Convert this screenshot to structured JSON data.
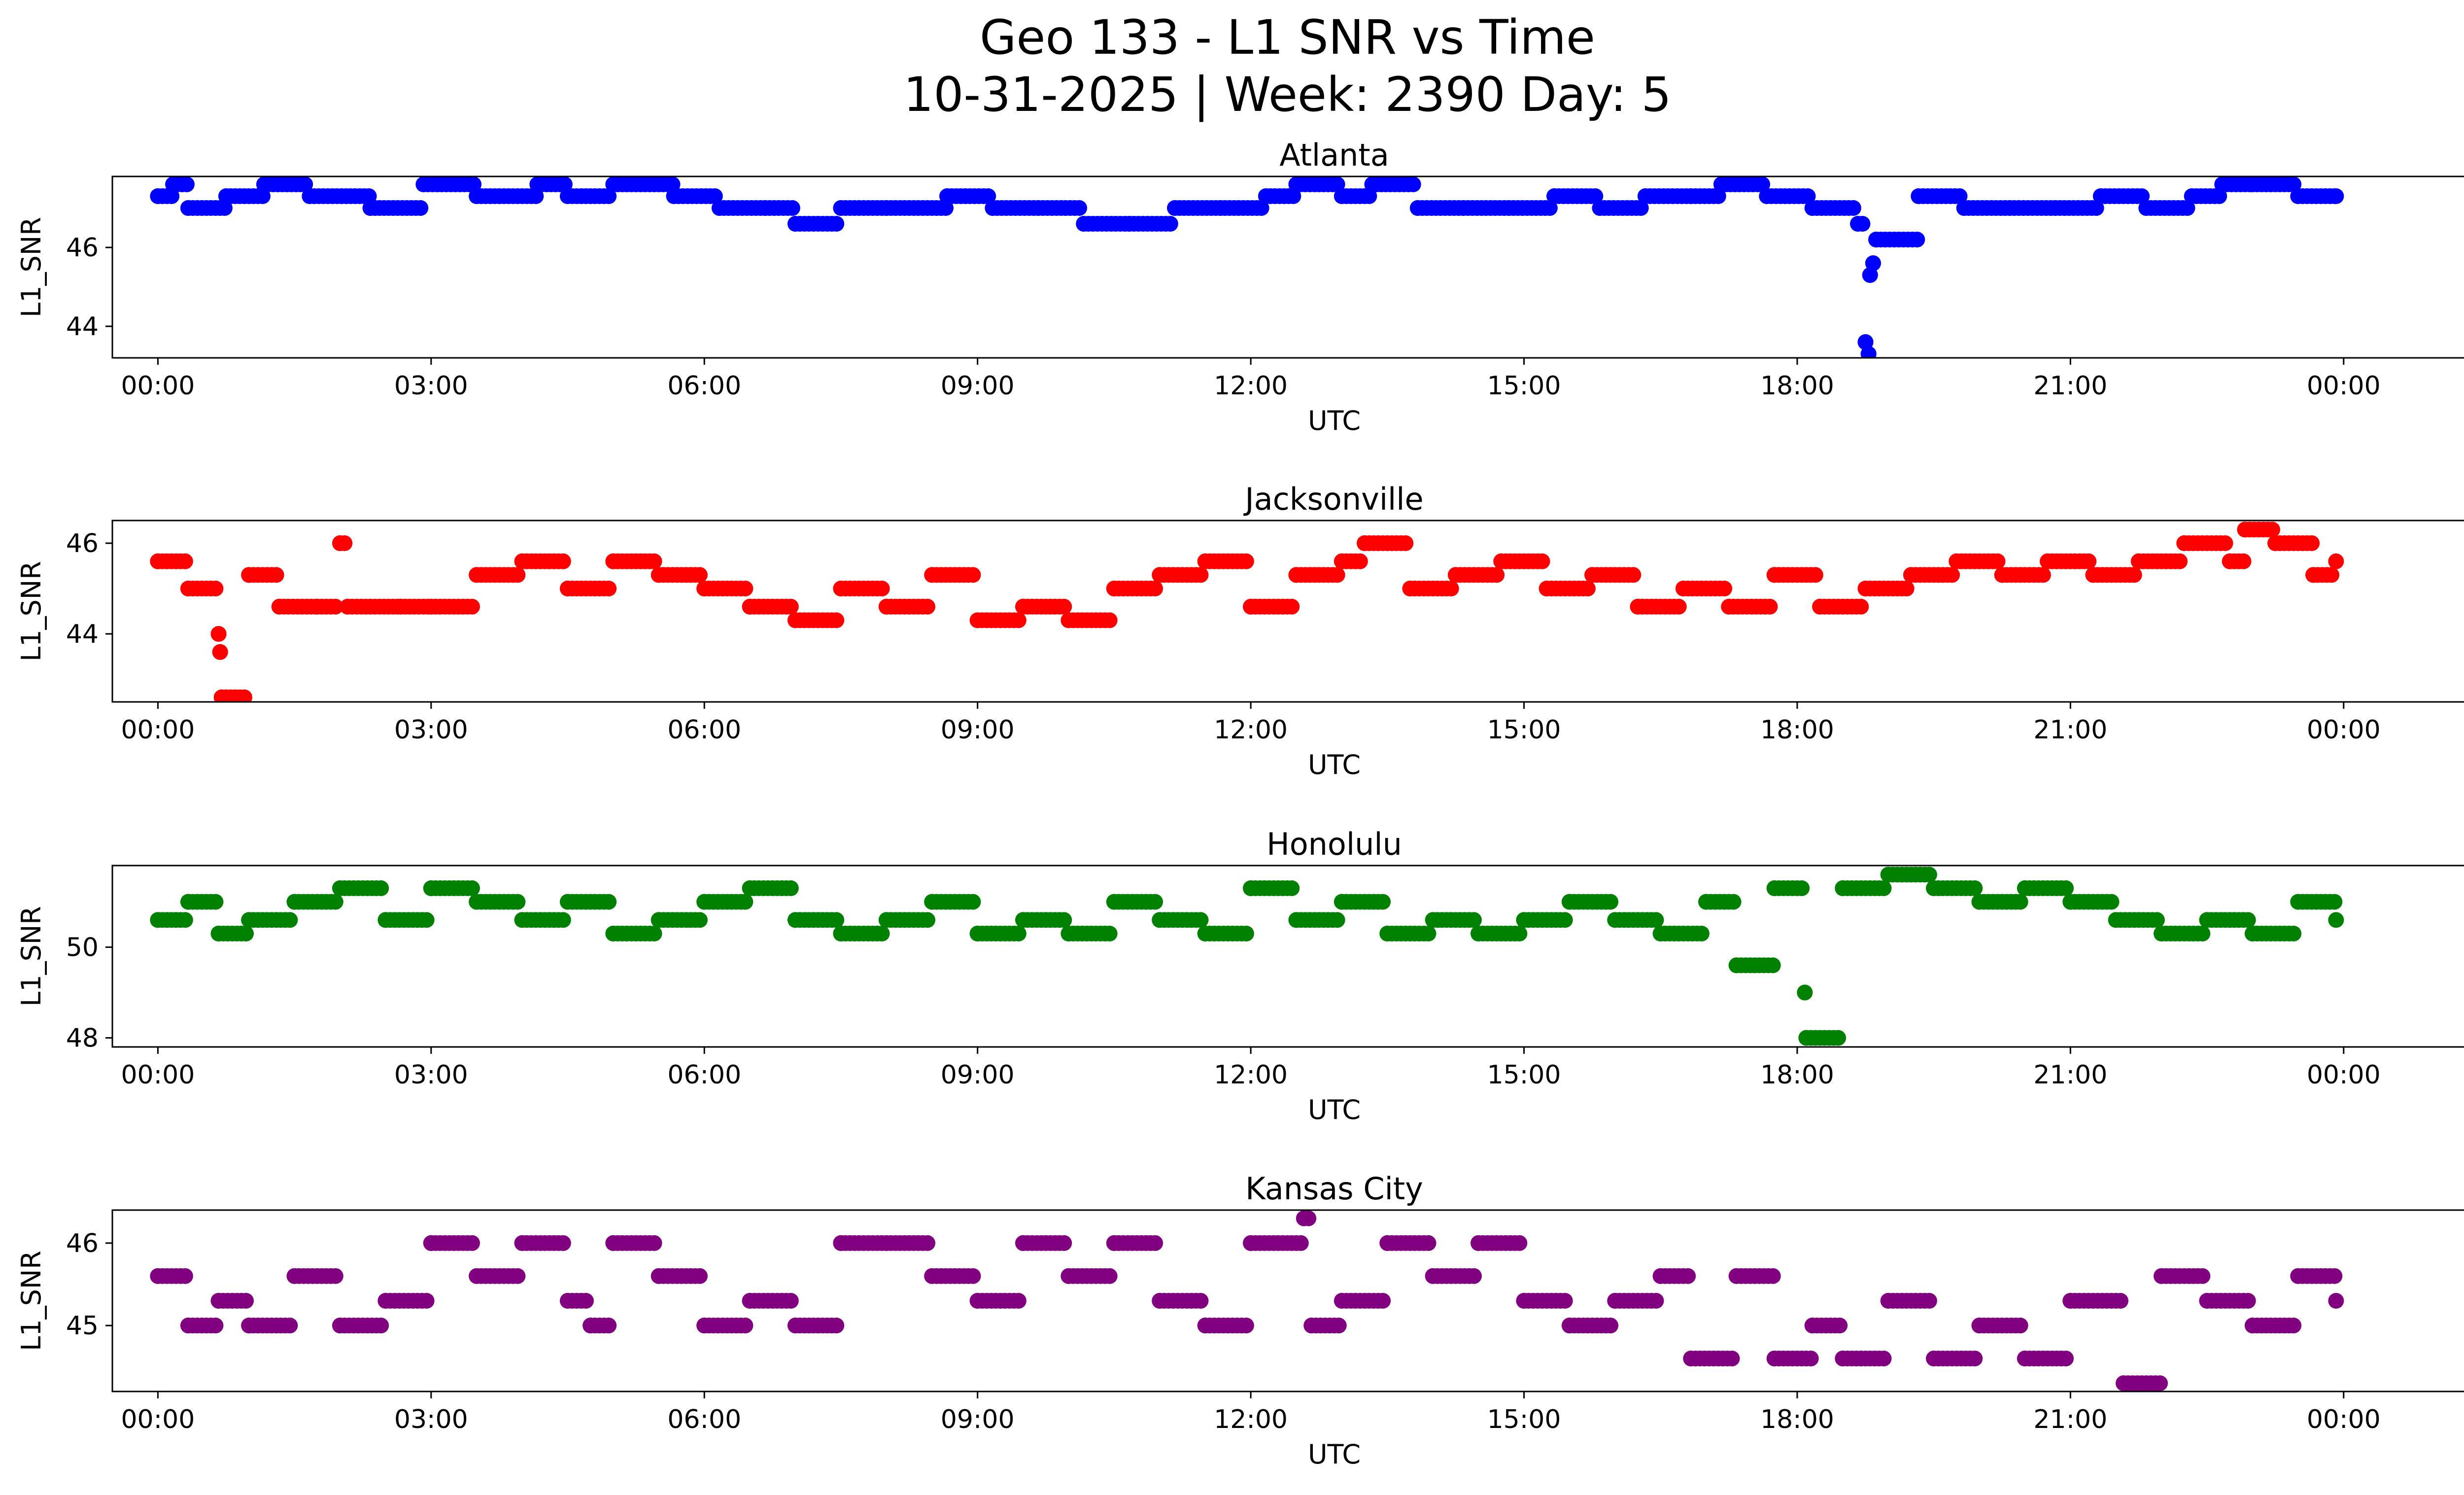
{
  "figure": {
    "title_line1": "Geo 133 - L1 SNR vs Time",
    "title_line2": "10-31-2025 | Week: 2390 Day: 5"
  },
  "chart_data": [
    {
      "type": "scatter",
      "title": "Atlanta",
      "xlabel": "UTC",
      "ylabel": "L1_SNR",
      "color": "#0000ff",
      "xlim": [
        "-0:30",
        "26:20"
      ],
      "ylim": [
        43.2,
        47.8
      ],
      "yticks": [
        44,
        46
      ],
      "xticks": [
        "00:00",
        "03:00",
        "06:00",
        "09:00",
        "12:00",
        "15:00",
        "18:00",
        "21:00",
        "00:00"
      ],
      "grid": false,
      "points": [
        [
          "00:00",
          47.3
        ],
        [
          "00:10",
          47.6
        ],
        [
          "00:20",
          47.0
        ],
        [
          "00:45",
          47.3
        ],
        [
          "01:10",
          47.6
        ],
        [
          "01:40",
          47.3
        ],
        [
          "02:20",
          47.0
        ],
        [
          "02:55",
          47.6
        ],
        [
          "03:30",
          47.3
        ],
        [
          "04:10",
          47.6
        ],
        [
          "04:30",
          47.3
        ],
        [
          "05:00",
          47.6
        ],
        [
          "05:40",
          47.3
        ],
        [
          "06:10",
          47.0
        ],
        [
          "06:40",
          47.0
        ],
        [
          "07:00",
          46.6
        ],
        [
          "07:30",
          47.0
        ],
        [
          "08:00",
          47.0
        ],
        [
          "08:40",
          47.3
        ],
        [
          "09:10",
          47.0
        ],
        [
          "09:40",
          47.0
        ],
        [
          "10:10",
          46.6
        ],
        [
          "10:40",
          46.6
        ],
        [
          "11:10",
          47.0
        ],
        [
          "11:40",
          47.0
        ],
        [
          "12:10",
          47.3
        ],
        [
          "12:30",
          47.6
        ],
        [
          "13:00",
          47.3
        ],
        [
          "13:20",
          47.6
        ],
        [
          "13:50",
          47.0
        ],
        [
          "14:20",
          47.0
        ],
        [
          "14:50",
          47.0
        ],
        [
          "15:20",
          47.3
        ],
        [
          "15:50",
          47.0
        ],
        [
          "16:20",
          47.3
        ],
        [
          "16:50",
          47.3
        ],
        [
          "17:10",
          47.6
        ],
        [
          "17:40",
          47.3
        ],
        [
          "18:10",
          47.0
        ],
        [
          "18:40",
          46.6
        ],
        [
          "18:48",
          45.3
        ],
        [
          "18:50",
          45.6
        ],
        [
          "18:52",
          46.2
        ],
        [
          "18:45",
          43.6
        ],
        [
          "18:47",
          43.3
        ],
        [
          "19:20",
          47.3
        ],
        [
          "19:50",
          47.0
        ],
        [
          "20:20",
          47.0
        ],
        [
          "20:50",
          47.0
        ],
        [
          "21:20",
          47.3
        ],
        [
          "21:50",
          47.0
        ],
        [
          "22:20",
          47.3
        ],
        [
          "22:40",
          47.6
        ],
        [
          "23:00",
          47.6
        ],
        [
          "23:30",
          47.3
        ],
        [
          "23:55",
          47.3
        ]
      ]
    },
    {
      "type": "scatter",
      "title": "Jacksonville",
      "xlabel": "UTC",
      "ylabel": "L1_SNR",
      "color": "#ff0000",
      "xlim": [
        "-0:30",
        "26:20"
      ],
      "ylim": [
        42.5,
        46.5
      ],
      "yticks": [
        44,
        46
      ],
      "xticks": [
        "00:00",
        "03:00",
        "06:00",
        "09:00",
        "12:00",
        "15:00",
        "18:00",
        "21:00",
        "00:00"
      ],
      "grid": false,
      "points": [
        [
          "00:00",
          45.6
        ],
        [
          "00:20",
          45.0
        ],
        [
          "00:40",
          44.0
        ],
        [
          "00:41",
          43.6
        ],
        [
          "00:42",
          42.6
        ],
        [
          "01:00",
          45.3
        ],
        [
          "01:20",
          44.6
        ],
        [
          "01:45",
          44.6
        ],
        [
          "02:00",
          46.0
        ],
        [
          "02:05",
          44.6
        ],
        [
          "02:40",
          44.6
        ],
        [
          "03:00",
          44.6
        ],
        [
          "03:30",
          45.3
        ],
        [
          "04:00",
          45.6
        ],
        [
          "04:30",
          45.0
        ],
        [
          "05:00",
          45.6
        ],
        [
          "05:30",
          45.3
        ],
        [
          "06:00",
          45.0
        ],
        [
          "06:30",
          44.6
        ],
        [
          "07:00",
          44.3
        ],
        [
          "07:30",
          45.0
        ],
        [
          "08:00",
          44.6
        ],
        [
          "08:30",
          45.3
        ],
        [
          "09:00",
          44.3
        ],
        [
          "09:30",
          44.6
        ],
        [
          "10:00",
          44.3
        ],
        [
          "10:30",
          45.0
        ],
        [
          "11:00",
          45.3
        ],
        [
          "11:30",
          45.6
        ],
        [
          "12:00",
          44.6
        ],
        [
          "12:30",
          45.3
        ],
        [
          "13:00",
          45.6
        ],
        [
          "13:15",
          46.0
        ],
        [
          "13:45",
          45.0
        ],
        [
          "14:15",
          45.3
        ],
        [
          "14:45",
          45.6
        ],
        [
          "15:15",
          45.0
        ],
        [
          "15:45",
          45.3
        ],
        [
          "16:15",
          44.6
        ],
        [
          "16:45",
          45.0
        ],
        [
          "17:15",
          44.6
        ],
        [
          "17:45",
          45.3
        ],
        [
          "18:15",
          44.6
        ],
        [
          "18:45",
          45.0
        ],
        [
          "19:15",
          45.3
        ],
        [
          "19:45",
          45.6
        ],
        [
          "20:15",
          45.3
        ],
        [
          "20:45",
          45.6
        ],
        [
          "21:15",
          45.3
        ],
        [
          "21:45",
          45.6
        ],
        [
          "22:15",
          46.0
        ],
        [
          "22:45",
          45.6
        ],
        [
          "22:55",
          46.3
        ],
        [
          "23:15",
          46.0
        ],
        [
          "23:40",
          45.3
        ],
        [
          "23:55",
          45.6
        ]
      ]
    },
    {
      "type": "scatter",
      "title": "Honolulu",
      "xlabel": "UTC",
      "ylabel": "L1_SNR",
      "color": "#008000",
      "xlim": [
        "-0:30",
        "26:20"
      ],
      "ylim": [
        47.8,
        51.8
      ],
      "yticks": [
        48,
        50
      ],
      "xticks": [
        "00:00",
        "03:00",
        "06:00",
        "09:00",
        "12:00",
        "15:00",
        "18:00",
        "21:00",
        "00:00"
      ],
      "grid": false,
      "points": [
        [
          "00:00",
          50.6
        ],
        [
          "00:20",
          51.0
        ],
        [
          "00:40",
          50.3
        ],
        [
          "01:00",
          50.6
        ],
        [
          "01:30",
          51.0
        ],
        [
          "02:00",
          51.3
        ],
        [
          "02:30",
          50.6
        ],
        [
          "03:00",
          51.3
        ],
        [
          "03:30",
          51.0
        ],
        [
          "04:00",
          50.6
        ],
        [
          "04:30",
          51.0
        ],
        [
          "05:00",
          50.3
        ],
        [
          "05:30",
          50.6
        ],
        [
          "06:00",
          51.0
        ],
        [
          "06:30",
          51.3
        ],
        [
          "07:00",
          50.6
        ],
        [
          "07:30",
          50.3
        ],
        [
          "08:00",
          50.6
        ],
        [
          "08:30",
          51.0
        ],
        [
          "09:00",
          50.3
        ],
        [
          "09:30",
          50.6
        ],
        [
          "10:00",
          50.3
        ],
        [
          "10:30",
          51.0
        ],
        [
          "11:00",
          50.6
        ],
        [
          "11:30",
          50.3
        ],
        [
          "12:00",
          51.3
        ],
        [
          "12:30",
          50.6
        ],
        [
          "13:00",
          51.0
        ],
        [
          "13:30",
          50.3
        ],
        [
          "14:00",
          50.6
        ],
        [
          "14:30",
          50.3
        ],
        [
          "15:00",
          50.6
        ],
        [
          "15:30",
          51.0
        ],
        [
          "16:00",
          50.6
        ],
        [
          "16:30",
          50.3
        ],
        [
          "17:00",
          51.0
        ],
        [
          "17:20",
          49.6
        ],
        [
          "17:45",
          51.3
        ],
        [
          "18:05",
          49.0
        ],
        [
          "18:06",
          48.0
        ],
        [
          "18:30",
          51.3
        ],
        [
          "19:00",
          51.6
        ],
        [
          "19:30",
          51.3
        ],
        [
          "20:00",
          51.0
        ],
        [
          "20:30",
          51.3
        ],
        [
          "21:00",
          51.0
        ],
        [
          "21:30",
          50.6
        ],
        [
          "22:00",
          50.3
        ],
        [
          "22:30",
          50.6
        ],
        [
          "23:00",
          50.3
        ],
        [
          "23:30",
          51.0
        ],
        [
          "23:55",
          50.6
        ]
      ]
    },
    {
      "type": "scatter",
      "title": "Kansas City",
      "xlabel": "UTC",
      "ylabel": "L1_SNR",
      "color": "#800080",
      "xlim": [
        "-0:30",
        "26:20"
      ],
      "ylim": [
        44.2,
        46.4
      ],
      "yticks": [
        45,
        46
      ],
      "xticks": [
        "00:00",
        "03:00",
        "06:00",
        "09:00",
        "12:00",
        "15:00",
        "18:00",
        "21:00",
        "00:00"
      ],
      "grid": false,
      "points": [
        [
          "00:00",
          45.6
        ],
        [
          "00:20",
          45.0
        ],
        [
          "00:40",
          45.3
        ],
        [
          "01:00",
          45.0
        ],
        [
          "01:30",
          45.6
        ],
        [
          "02:00",
          45.0
        ],
        [
          "02:30",
          45.3
        ],
        [
          "03:00",
          46.0
        ],
        [
          "03:30",
          45.6
        ],
        [
          "04:00",
          46.0
        ],
        [
          "04:30",
          45.3
        ],
        [
          "04:45",
          45.0
        ],
        [
          "05:00",
          46.0
        ],
        [
          "05:30",
          45.6
        ],
        [
          "06:00",
          45.0
        ],
        [
          "06:30",
          45.3
        ],
        [
          "07:00",
          45.0
        ],
        [
          "07:30",
          46.0
        ],
        [
          "08:00",
          46.0
        ],
        [
          "08:30",
          45.6
        ],
        [
          "09:00",
          45.3
        ],
        [
          "09:30",
          46.0
        ],
        [
          "10:00",
          45.6
        ],
        [
          "10:30",
          46.0
        ],
        [
          "11:00",
          45.3
        ],
        [
          "11:30",
          45.0
        ],
        [
          "12:00",
          46.0
        ],
        [
          "12:35",
          46.3
        ],
        [
          "12:40",
          45.0
        ],
        [
          "13:00",
          45.3
        ],
        [
          "13:30",
          46.0
        ],
        [
          "14:00",
          45.6
        ],
        [
          "14:30",
          46.0
        ],
        [
          "15:00",
          45.3
        ],
        [
          "15:30",
          45.0
        ],
        [
          "16:00",
          45.3
        ],
        [
          "16:30",
          45.6
        ],
        [
          "16:50",
          44.6
        ],
        [
          "17:20",
          45.6
        ],
        [
          "17:45",
          44.6
        ],
        [
          "18:10",
          45.0
        ],
        [
          "18:30",
          44.6
        ],
        [
          "19:00",
          45.3
        ],
        [
          "19:30",
          44.6
        ],
        [
          "20:00",
          45.0
        ],
        [
          "20:30",
          44.6
        ],
        [
          "21:00",
          45.3
        ],
        [
          "21:35",
          44.3
        ],
        [
          "22:00",
          45.6
        ],
        [
          "22:30",
          45.3
        ],
        [
          "23:00",
          45.0
        ],
        [
          "23:30",
          45.6
        ],
        [
          "23:55",
          45.3
        ]
      ]
    }
  ]
}
